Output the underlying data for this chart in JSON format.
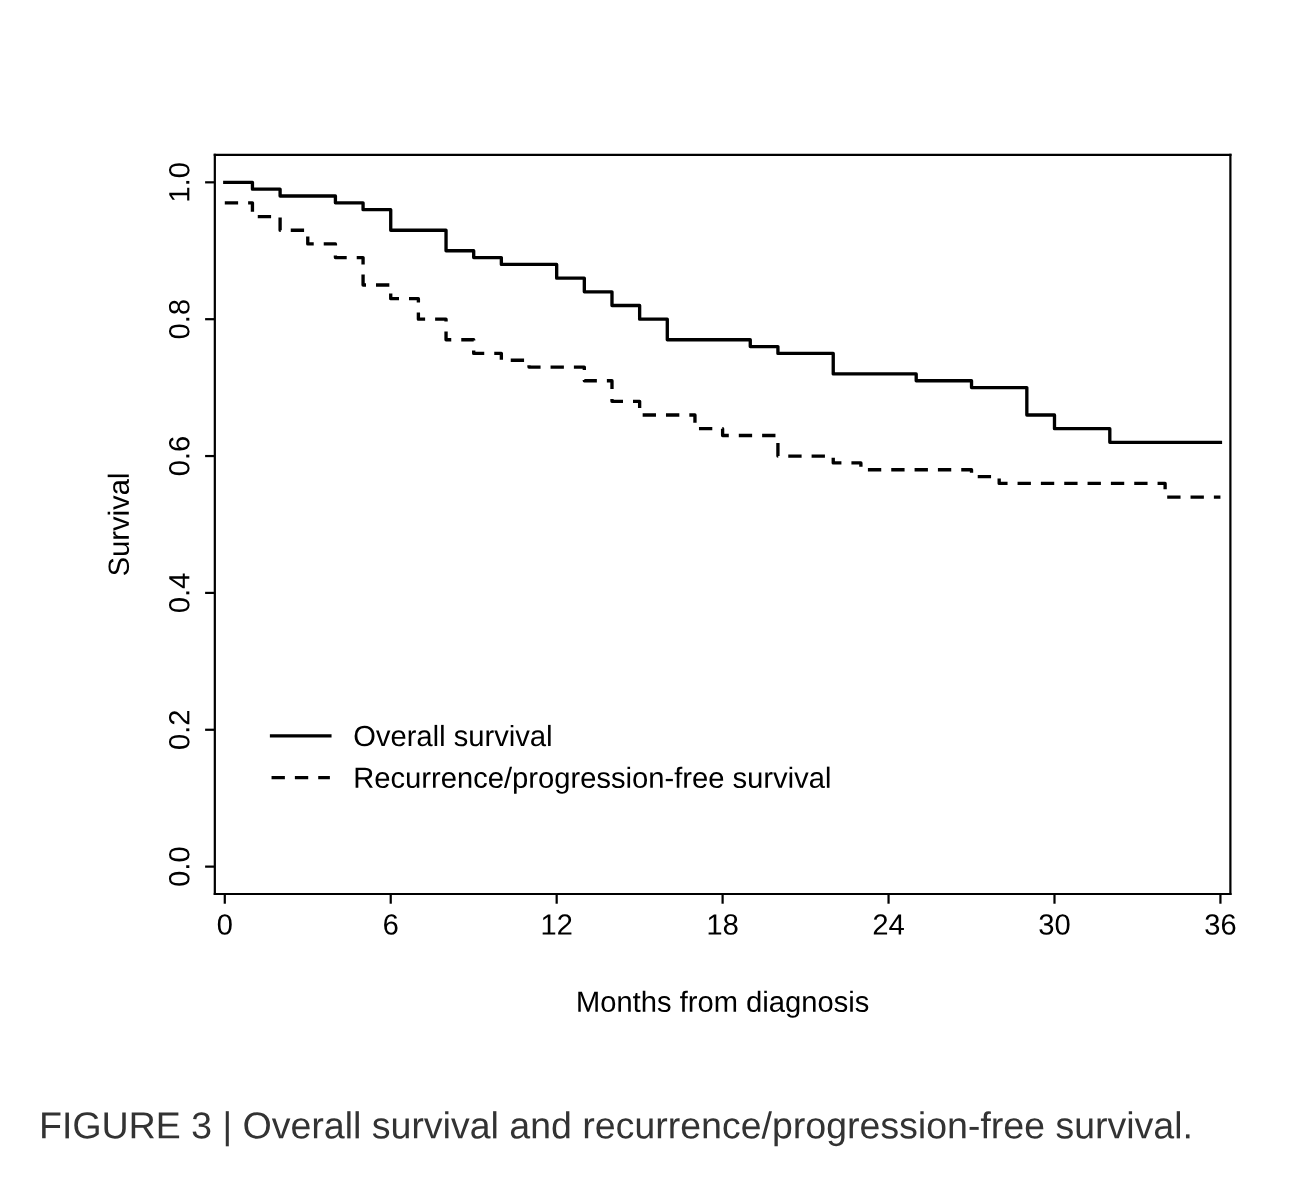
{
  "chart_data": {
    "type": "step",
    "xlabel": "Months from diagnosis",
    "ylabel": "Survival",
    "xlim": [
      -0.36,
      36.36
    ],
    "ylim": [
      -0.04,
      1.04
    ],
    "xticks": [
      0,
      6,
      12,
      18,
      24,
      30,
      36
    ],
    "yticks": [
      {
        "value": 0,
        "label": "0.0"
      },
      {
        "value": 0.2,
        "label": "0.2"
      },
      {
        "value": 0.4,
        "label": "0.4"
      },
      {
        "value": 0.6,
        "label": "0.6"
      },
      {
        "value": 0.8,
        "label": "0.8"
      },
      {
        "value": 1,
        "label": "1.0"
      }
    ],
    "grid": false,
    "legend": "bottom left",
    "marker": "none",
    "series": [
      {
        "name": "Overall survival",
        "color": "#000000",
        "line_style": "solid",
        "x": [
          0,
          1,
          2,
          4,
          5,
          6,
          8,
          9,
          10,
          12,
          13,
          14,
          15,
          16,
          18,
          19,
          20,
          22,
          25,
          27,
          29,
          30,
          32,
          36
        ],
        "values": [
          1.0,
          0.99,
          0.98,
          0.97,
          0.96,
          0.93,
          0.9,
          0.89,
          0.88,
          0.86,
          0.84,
          0.82,
          0.8,
          0.77,
          0.77,
          0.76,
          0.75,
          0.72,
          0.71,
          0.7,
          0.66,
          0.64,
          0.62,
          0.62
        ]
      },
      {
        "name": "Recurrence/progression-free survival",
        "color": "#000000",
        "line_style": "dashed",
        "x": [
          0,
          1,
          2,
          3,
          4,
          5,
          6,
          7,
          8,
          9,
          10,
          11,
          13,
          14,
          15,
          17,
          18,
          20,
          22,
          23,
          27,
          28,
          34,
          36
        ],
        "values": [
          0.97,
          0.95,
          0.93,
          0.91,
          0.89,
          0.85,
          0.83,
          0.8,
          0.77,
          0.75,
          0.74,
          0.73,
          0.71,
          0.68,
          0.66,
          0.64,
          0.63,
          0.6,
          0.59,
          0.58,
          0.57,
          0.56,
          0.54,
          0.54
        ]
      }
    ],
    "annotations": [
      "FIGURE 3 | Overall survival and recurrence/progression-free survival."
    ]
  }
}
